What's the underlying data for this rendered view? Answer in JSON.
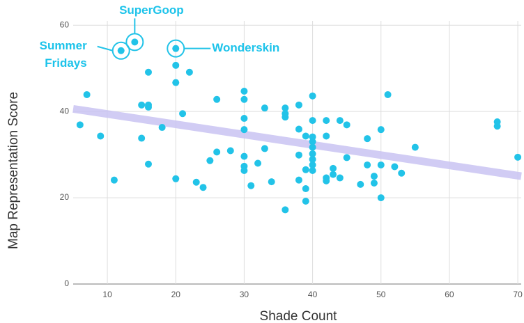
{
  "chart_data": {
    "type": "scatter",
    "x_label": "Shade Count",
    "y_label": "Map Representation Score",
    "color": "#22c3e8",
    "grid": true,
    "xlim": [
      5,
      70.5
    ],
    "ylim": [
      0,
      61
    ],
    "xticks": [
      10,
      20,
      30,
      40,
      50,
      60,
      70
    ],
    "yticks": [
      0,
      20,
      40,
      60
    ],
    "x": [
      6,
      7,
      9,
      11,
      12,
      14,
      15,
      15,
      16,
      16,
      16,
      16,
      18,
      20,
      20,
      20,
      20,
      21,
      22,
      23,
      24,
      25,
      26,
      26,
      28,
      30,
      30,
      30,
      30,
      30,
      30,
      30,
      31,
      32,
      33,
      33,
      34,
      36,
      36,
      36,
      36,
      38,
      38,
      38,
      38,
      39,
      39,
      39,
      39,
      40,
      40,
      40,
      40,
      40,
      40,
      40,
      40,
      40,
      42,
      42,
      42,
      42,
      43,
      43,
      44,
      44,
      45,
      45,
      47,
      48,
      48,
      49,
      49,
      50,
      50,
      50,
      51,
      52,
      53,
      55,
      67,
      67,
      70
    ],
    "values": [
      36.9,
      43.9,
      34.3,
      24.1,
      54.1,
      56.1,
      41.5,
      33.8,
      49.1,
      41.5,
      41,
      27.8,
      36.3,
      54.6,
      50.7,
      46.7,
      24.4,
      39.5,
      49.1,
      23.6,
      22.4,
      28.6,
      42.8,
      30.6,
      30.9,
      44.7,
      42.8,
      38.4,
      35.8,
      29.6,
      27.3,
      26.3,
      22.8,
      28,
      31.4,
      40.8,
      23.7,
      40.8,
      39.5,
      38.7,
      17.2,
      41.5,
      35.9,
      29.9,
      24.1,
      34.3,
      26.5,
      22.1,
      19.2,
      43.6,
      37.9,
      34.1,
      33,
      31.7,
      30.2,
      28.9,
      27.6,
      26.3,
      37.9,
      34.3,
      24.6,
      23.9,
      26.8,
      25.4,
      37.9,
      24.6,
      36.9,
      29.3,
      23.1,
      33.7,
      27.6,
      25,
      23.4,
      35.8,
      27.6,
      20,
      43.9,
      27.2,
      25.7,
      31.7,
      37.6,
      36.6,
      29.4
    ],
    "trendline": {
      "color": "#c9c3f2",
      "x": [
        5,
        70.5
      ],
      "y": [
        40.6,
        25
      ]
    },
    "annotations": [
      {
        "text": "SuperGoop",
        "x": 14,
        "y": 56.1
      },
      {
        "text": [
          "Summer",
          "Fridays"
        ],
        "x": 12,
        "y": 54.1
      },
      {
        "text": "Wonderskin",
        "x": 20,
        "y": 54.6
      }
    ]
  }
}
